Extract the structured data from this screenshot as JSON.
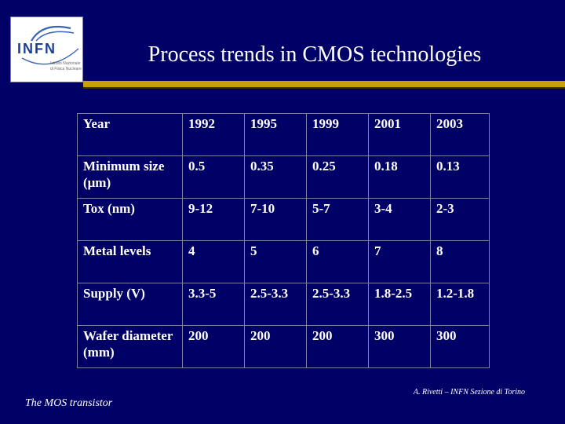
{
  "logo": {
    "word": "INFN",
    "subtitle_line1": "Istituto Nazionale",
    "subtitle_line2": "di Fisica Nucleare",
    "colors": {
      "primary": "#1d3f8f"
    }
  },
  "title": "Process trends in CMOS technologies",
  "colors": {
    "background": "#000066",
    "accent_rule": "#c8a000"
  },
  "table": {
    "rows": [
      [
        "Year",
        "1992",
        "1995",
        "1999",
        "2001",
        "2003"
      ],
      [
        "Minimum size (μm)",
        "0.5",
        "0.35",
        "0.25",
        "0.18",
        "0.13"
      ],
      [
        "Tox (nm)",
        "9-12",
        "7-10",
        "5-7",
        "3-4",
        "2-3"
      ],
      [
        "Metal levels",
        "4",
        "5",
        "6",
        "7",
        "8"
      ],
      [
        "Supply (V)",
        "3.3-5",
        "2.5-3.3",
        "2.5-3.3",
        "1.8-2.5",
        "1.2-1.8"
      ],
      [
        "Wafer diameter (mm)",
        "200",
        "200",
        "200",
        "300",
        "300"
      ]
    ]
  },
  "footer": {
    "left": "The MOS transistor",
    "right": "A. Rivetti – INFN Sezione di Torino"
  }
}
